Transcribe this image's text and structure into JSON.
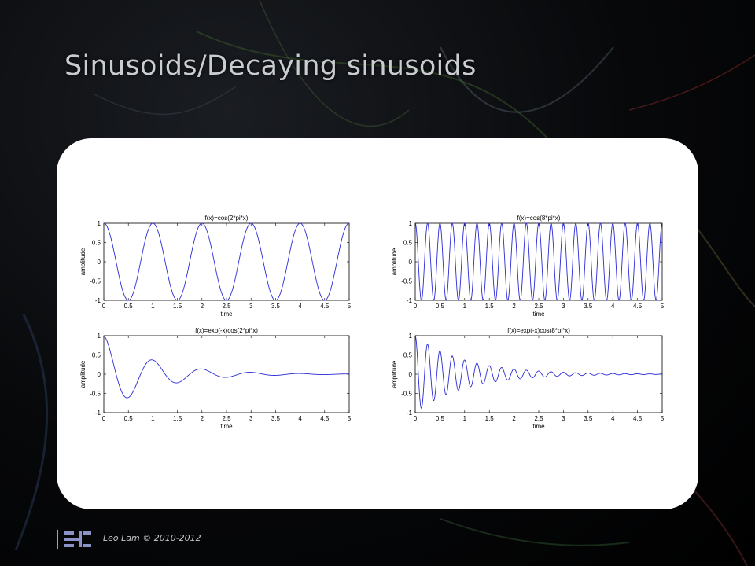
{
  "slide": {
    "title": "Sinusoids/Decaying  sinusoids",
    "footer": "Leo Lam © 2010-2012"
  },
  "colors": {
    "line": "#2b2bd6",
    "panel": "#ffffff",
    "title": "#c9ccd0"
  },
  "chart_data": [
    {
      "type": "line",
      "title": "f(x)=cos(2*pi*x)",
      "xlabel": "time",
      "ylabel": "amplitude",
      "xlim": [
        0,
        5
      ],
      "ylim": [
        -1,
        1
      ],
      "xticks": [
        "0",
        "0.5",
        "1",
        "1.5",
        "2",
        "2.5",
        "3",
        "3.5",
        "4",
        "4.5",
        "5"
      ],
      "yticks": [
        "1",
        "0.5",
        "0",
        "-0.5",
        "-1"
      ],
      "series": [
        {
          "decay": 0,
          "frequency": 1
        }
      ]
    },
    {
      "type": "line",
      "title": "f(x)=cos(8*pi*x)",
      "xlabel": "time",
      "ylabel": "amplitude",
      "xlim": [
        0,
        5
      ],
      "ylim": [
        -1,
        1
      ],
      "xticks": [
        "0",
        "0.5",
        "1",
        "1.5",
        "2",
        "2.5",
        "3",
        "3.5",
        "4",
        "4.5",
        "5"
      ],
      "yticks": [
        "1",
        "0.5",
        "0",
        "-0.5",
        "-1"
      ],
      "series": [
        {
          "decay": 0,
          "frequency": 4
        }
      ]
    },
    {
      "type": "line",
      "title": "f(x)=exp(-x)cos(2*pi*x)",
      "xlabel": "time",
      "ylabel": "amplitude",
      "xlim": [
        0,
        5
      ],
      "ylim": [
        -1,
        1
      ],
      "xticks": [
        "0",
        "0.5",
        "1",
        "1.5",
        "2",
        "2.5",
        "3",
        "3.5",
        "4",
        "4.5",
        "5"
      ],
      "yticks": [
        "1",
        "0.5",
        "0",
        "-0.5",
        "-1"
      ],
      "series": [
        {
          "decay": 1,
          "frequency": 1
        }
      ]
    },
    {
      "type": "line",
      "title": "f(x)=exp(-x)cos(8*pi*x)",
      "xlabel": "time",
      "ylabel": "amplitude",
      "xlim": [
        0,
        5
      ],
      "ylim": [
        -1,
        1
      ],
      "xticks": [
        "0",
        "0.5",
        "1",
        "1.5",
        "2",
        "2.5",
        "3",
        "3.5",
        "4",
        "4.5",
        "5"
      ],
      "yticks": [
        "1",
        "0.5",
        "0",
        "-0.5",
        "-1"
      ],
      "series": [
        {
          "decay": 1,
          "frequency": 4
        }
      ]
    }
  ]
}
